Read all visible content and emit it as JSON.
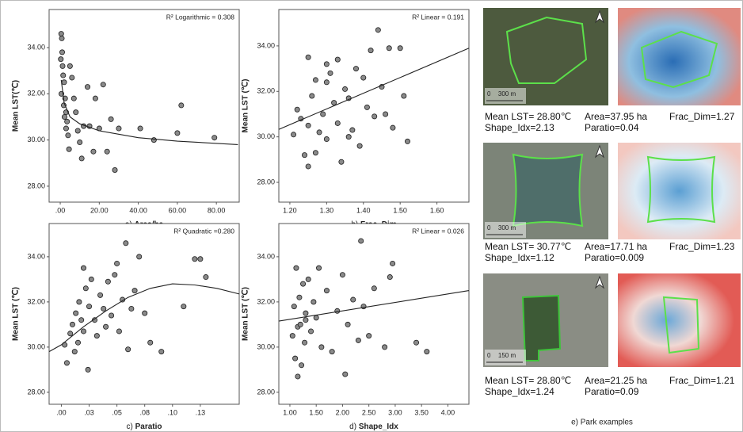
{
  "chart_data": [
    {
      "type": "scatter",
      "panel": "a)",
      "x_label": "Area/ha",
      "y_label": "Mean LST(℃)",
      "annotation": "R² Logarithmic = 0.308",
      "xlim": [
        -5.7,
        91.7
      ],
      "ylim": [
        27.31,
        35.65
      ],
      "xticks": [
        {
          "value": 0,
          "label": ".00"
        },
        {
          "value": 20,
          "label": "20.00"
        },
        {
          "value": 40,
          "label": "40.00"
        },
        {
          "value": 60,
          "label": "60.00"
        },
        {
          "value": 80,
          "label": "80.00"
        }
      ],
      "yticks": [
        {
          "value": 28,
          "label": "28.00"
        },
        {
          "value": 30,
          "label": "30.00"
        },
        {
          "value": 32,
          "label": "32.00"
        },
        {
          "value": 34,
          "label": "34.00"
        }
      ],
      "x": [
        0.5,
        0.8,
        1,
        1.2,
        1.5,
        2,
        2.5,
        3,
        3.5,
        4,
        0.3,
        0.6,
        1.8,
        2.2,
        3,
        4.5,
        5,
        6,
        7,
        8,
        9,
        10,
        11,
        12,
        14,
        15,
        17,
        18,
        20,
        22,
        24,
        26,
        28,
        30,
        41,
        48,
        60,
        62,
        79
      ],
      "values": [
        34.6,
        34.4,
        33.8,
        33.2,
        32.8,
        32.5,
        31.8,
        31.2,
        30.8,
        30.2,
        33.5,
        32,
        31.5,
        31,
        30.5,
        29.6,
        33.2,
        32.7,
        31.8,
        31.2,
        30.4,
        29.9,
        29.2,
        30.6,
        32.3,
        30.6,
        29.5,
        31.8,
        30.5,
        32.4,
        29.5,
        30.9,
        28.7,
        30.5,
        30.5,
        30,
        30.3,
        31.5,
        30.1
      ],
      "fit": {
        "x": [
          0.5,
          2,
          5,
          10,
          20,
          40,
          60,
          91
        ],
        "values": [
          32.6,
          31.6,
          31,
          30.7,
          30.4,
          30.1,
          29.95,
          29.8
        ]
      }
    },
    {
      "type": "scatter",
      "panel": "b)",
      "x_label": "Frac_Dim",
      "y_label": "Mean LST (℃)",
      "annotation": "R² Linear = 0.191",
      "xlim": [
        1.17,
        1.687
      ],
      "ylim": [
        27.13,
        35.6
      ],
      "xticks": [
        {
          "value": 1.2,
          "label": "1.20"
        },
        {
          "value": 1.3,
          "label": "1.30"
        },
        {
          "value": 1.4,
          "label": "1.40"
        },
        {
          "value": 1.5,
          "label": "1.50"
        },
        {
          "value": 1.6,
          "label": "1.60"
        }
      ],
      "yticks": [
        {
          "value": 28,
          "label": "28.00"
        },
        {
          "value": 30,
          "label": "30.00"
        },
        {
          "value": 32,
          "label": "32.00"
        },
        {
          "value": 34,
          "label": "34.00"
        }
      ],
      "x": [
        1.21,
        1.22,
        1.23,
        1.24,
        1.25,
        1.25,
        1.26,
        1.27,
        1.27,
        1.28,
        1.29,
        1.3,
        1.3,
        1.31,
        1.32,
        1.33,
        1.33,
        1.34,
        1.35,
        1.36,
        1.37,
        1.38,
        1.39,
        1.4,
        1.41,
        1.42,
        1.43,
        1.44,
        1.45,
        1.46,
        1.47,
        1.48,
        1.5,
        1.51,
        1.52,
        1.25,
        1.3,
        1.36
      ],
      "values": [
        30.1,
        31.2,
        30.8,
        29.2,
        33.5,
        30.5,
        31.8,
        29.3,
        32.5,
        30.2,
        31.0,
        33.2,
        29.9,
        32.8,
        31.5,
        30.6,
        33.4,
        28.9,
        32.1,
        31.7,
        30.3,
        33.0,
        29.6,
        32.6,
        31.3,
        33.8,
        30.9,
        34.7,
        32.2,
        31.0,
        33.9,
        30.4,
        33.9,
        31.8,
        29.8,
        28.7,
        32.4,
        30.0
      ],
      "fit": {
        "x": [
          1.17,
          1.687
        ],
        "values": [
          30.33,
          33.9
        ]
      }
    },
    {
      "type": "scatter",
      "panel": "c)",
      "x_label": "Paratio",
      "y_label": "Mean LST (℃)",
      "annotation": "R² Quadratic =0.280",
      "xlim": [
        -0.011,
        0.16
      ],
      "ylim": [
        27.47,
        35.47
      ],
      "xticks": [
        {
          "value": 0,
          "label": ".00"
        },
        {
          "value": 0.025,
          "label": ".03"
        },
        {
          "value": 0.05,
          "label": ".05"
        },
        {
          "value": 0.075,
          "label": ".08"
        },
        {
          "value": 0.1,
          "label": ".10"
        },
        {
          "value": 0.125,
          "label": ".13"
        }
      ],
      "yticks": [
        {
          "value": 28,
          "label": "28.00"
        },
        {
          "value": 30,
          "label": "30.00"
        },
        {
          "value": 32,
          "label": "32.00"
        },
        {
          "value": 34,
          "label": "34.00"
        }
      ],
      "x": [
        0.003,
        0.005,
        0.008,
        0.01,
        0.012,
        0.013,
        0.015,
        0.016,
        0.018,
        0.02,
        0.02,
        0.022,
        0.024,
        0.025,
        0.027,
        0.03,
        0.032,
        0.035,
        0.038,
        0.04,
        0.042,
        0.045,
        0.048,
        0.05,
        0.052,
        0.055,
        0.058,
        0.06,
        0.063,
        0.066,
        0.07,
        0.075,
        0.08,
        0.09,
        0.11,
        0.12,
        0.125,
        0.13
      ],
      "values": [
        30.1,
        29.3,
        30.6,
        31.0,
        29.8,
        31.5,
        30.2,
        32.0,
        31.2,
        33.5,
        30.7,
        32.6,
        29.0,
        31.8,
        33.0,
        31.2,
        30.5,
        32.3,
        31.7,
        30.9,
        32.9,
        31.4,
        33.2,
        33.7,
        30.7,
        32.1,
        34.6,
        29.9,
        31.7,
        32.5,
        34.0,
        31.5,
        30.2,
        29.8,
        31.8,
        33.9,
        33.9,
        33.1
      ],
      "fit": {
        "x": [
          -0.011,
          0,
          0.02,
          0.04,
          0.06,
          0.08,
          0.1,
          0.12,
          0.14,
          0.16
        ],
        "values": [
          29.8,
          30.1,
          30.9,
          31.6,
          32.2,
          32.6,
          32.8,
          32.75,
          32.6,
          32.35
        ]
      }
    },
    {
      "type": "scatter",
      "panel": "d)",
      "x_label": "Shape_Idx",
      "y_label": "Mean LST (℃)",
      "annotation": "R² Linear = 0.026",
      "xlim": [
        0.79,
        4.4
      ],
      "ylim": [
        27.47,
        35.47
      ],
      "xticks": [
        {
          "value": 1,
          "label": "1.00"
        },
        {
          "value": 1.5,
          "label": "1.50"
        },
        {
          "value": 2,
          "label": "2.00"
        },
        {
          "value": 2.5,
          "label": "2.50"
        },
        {
          "value": 3,
          "label": "3.00"
        },
        {
          "value": 3.5,
          "label": "3.50"
        },
        {
          "value": 4,
          "label": "4.00"
        }
      ],
      "yticks": [
        {
          "value": 28,
          "label": "28.00"
        },
        {
          "value": 30,
          "label": "30.00"
        },
        {
          "value": 32,
          "label": "32.00"
        },
        {
          "value": 34,
          "label": "34.00"
        }
      ],
      "x": [
        1.05,
        1.08,
        1.1,
        1.12,
        1.15,
        1.18,
        1.2,
        1.22,
        1.25,
        1.28,
        1.3,
        1.35,
        1.4,
        1.45,
        1.5,
        1.55,
        1.6,
        1.7,
        1.8,
        1.9,
        2.0,
        2.05,
        2.1,
        2.2,
        2.3,
        2.35,
        2.4,
        2.5,
        2.6,
        2.8,
        2.9,
        2.95,
        3.4,
        3.6,
        1.15,
        1.3
      ],
      "values": [
        30.5,
        31.8,
        29.5,
        33.5,
        30.9,
        32.2,
        31.0,
        29.2,
        32.8,
        30.2,
        31.5,
        33.0,
        30.7,
        32.0,
        31.3,
        33.5,
        30.0,
        32.5,
        29.8,
        31.6,
        33.2,
        28.8,
        31.0,
        32.1,
        30.3,
        34.7,
        31.8,
        30.5,
        32.6,
        30.0,
        33.1,
        33.7,
        30.2,
        29.8,
        28.7,
        31.2
      ],
      "fit": {
        "x": [
          0.79,
          4.4
        ],
        "values": [
          31.15,
          32.5
        ]
      }
    }
  ],
  "park_examples": {
    "caption": "e) Park examples",
    "items": [
      {
        "scale_zero": "0",
        "scale": "300 m",
        "lst": "Mean LST= 28.80℃",
        "area": "Area=37.95 ha",
        "frac": "Frac_Dim=1.27",
        "shape": "Shape_Idx=2.13",
        "paratio": "Paratio=0.04"
      },
      {
        "scale_zero": "0",
        "scale": "300 m",
        "lst": "Mean LST= 30.77℃",
        "area": "Area=17.71 ha",
        "frac": "Frac_Dim=1.23",
        "shape": "Shape_Idx=1.12",
        "paratio": "Paratio=0.009"
      },
      {
        "scale_zero": "0",
        "scale": "150 m",
        "lst": "Mean LST= 28.80℃",
        "area": "Area=21.25 ha",
        "frac": "Frac_Dim=1.21",
        "shape": "Shape_Idx=1.24",
        "paratio": "Paratio=0.09"
      }
    ]
  }
}
